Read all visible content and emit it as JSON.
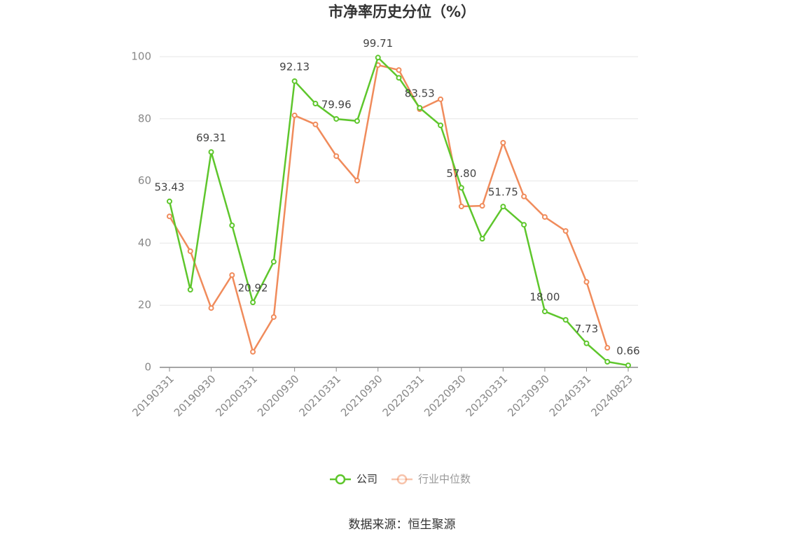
{
  "chart_data": {
    "type": "line",
    "title": "市净率历史分位（%）",
    "categories": [
      "20190331",
      null,
      "20190930",
      null,
      "20200331",
      null,
      "20200930",
      null,
      "20210331",
      null,
      "20210930",
      null,
      "20220331",
      null,
      "20220930",
      null,
      "20230331",
      null,
      "20230930",
      null,
      "20240331",
      null,
      "20240823"
    ],
    "series": [
      {
        "name": "公司",
        "color": "#5ec62c",
        "values": [
          53.43,
          25,
          69.31,
          45.7,
          20.92,
          34,
          92.13,
          84.9,
          79.96,
          79.3,
          99.71,
          93.2,
          83.53,
          77.9,
          57.8,
          41.4,
          51.75,
          45.9,
          18.0,
          15.3,
          7.73,
          1.8,
          0.66
        ],
        "value_labels": [
          "53.43",
          null,
          "69.31",
          null,
          "20.92",
          null,
          "92.13",
          null,
          "79.96",
          null,
          "99.71",
          null,
          "83.53",
          null,
          "57.80",
          null,
          "51.75",
          null,
          "18.00",
          null,
          "7.73",
          null,
          "0.66"
        ]
      },
      {
        "name": "行业中位数",
        "color": "#f08b5b",
        "values": [
          48.6,
          37.4,
          19.1,
          29.7,
          5.0,
          16.2,
          81.1,
          78.2,
          68.0,
          60.1,
          97.3,
          95.7,
          83.1,
          86.3,
          51.8,
          52.0,
          72.3,
          55.0,
          48.4,
          43.9,
          27.5,
          6.3,
          null
        ]
      }
    ],
    "ylim": [
      0,
      100
    ],
    "yticks": [
      0,
      20,
      40,
      60,
      80,
      100
    ],
    "grid": true,
    "source": "数据来源：恒生聚源"
  }
}
